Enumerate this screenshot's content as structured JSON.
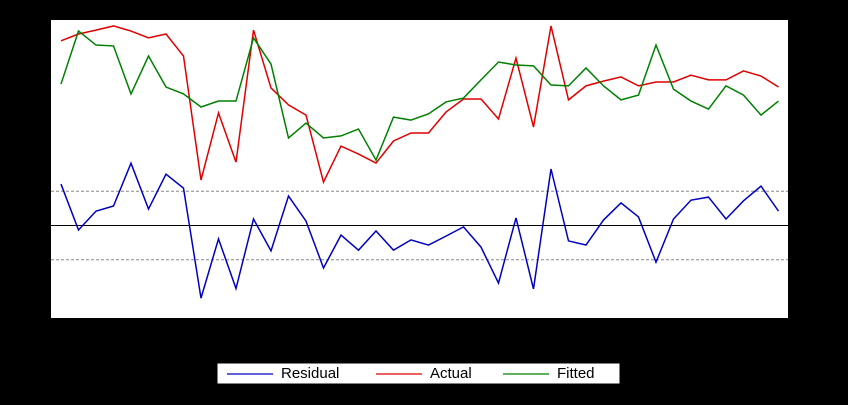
{
  "chart_data": {
    "type": "line",
    "categories": [
      null,
      null,
      null,
      null,
      null,
      null,
      null,
      null,
      null,
      null,
      null,
      null,
      null,
      null,
      null,
      null,
      null,
      null,
      null,
      null,
      null,
      null,
      null,
      null,
      null,
      null,
      null,
      null,
      null,
      null,
      null,
      null,
      null,
      null,
      null,
      null,
      null,
      null,
      null,
      null,
      null,
      null
    ],
    "ylim": [
      0,
      100
    ],
    "y2lim": [
      -2.7,
      6
    ],
    "y2ticks": [
      -1,
      0,
      1
    ],
    "series": [
      {
        "name": "Residual",
        "color": "#0000c0",
        "axis": "y2",
        "values": [
          1.21,
          -0.13,
          0.42,
          0.57,
          1.82,
          0.48,
          1.5,
          1.09,
          -2.12,
          -0.39,
          -1.84,
          0.19,
          -0.74,
          0.86,
          0.13,
          -1.24,
          -0.28,
          -0.72,
          -0.16,
          -0.72,
          -0.42,
          -0.57,
          -0.31,
          -0.04,
          -0.63,
          -1.68,
          0.22,
          -1.85,
          1.65,
          -0.45,
          -0.57,
          0.16,
          0.66,
          0.25,
          -1.07,
          0.19,
          0.74,
          0.83,
          0.19,
          0.72,
          1.15,
          0.42
        ]
      },
      {
        "name": "Actual",
        "color": "#e00000",
        "values": [
          93.0,
          95.3,
          96.6,
          98.0,
          96.3,
          94.0,
          95.3,
          87.9,
          46.3,
          68.8,
          52.3,
          96.6,
          77.2,
          71.5,
          68.1,
          45.6,
          57.7,
          55.0,
          52.0,
          59.4,
          62.1,
          62.1,
          69.1,
          73.5,
          73.5,
          66.8,
          87.2,
          64.1,
          98.0,
          73.2,
          77.9,
          79.5,
          80.9,
          77.9,
          79.2,
          79.2,
          81.5,
          79.9,
          79.9,
          82.9,
          81.2,
          77.5
        ]
      },
      {
        "name": "Fitted",
        "color": "#008000",
        "values": [
          78.5,
          96.3,
          91.6,
          91.3,
          75.2,
          87.9,
          77.5,
          75.2,
          70.8,
          72.8,
          72.8,
          94.0,
          85.2,
          60.4,
          65.4,
          60.4,
          61.1,
          63.4,
          53.0,
          67.4,
          66.4,
          68.5,
          72.5,
          73.8,
          79.9,
          85.9,
          84.9,
          84.6,
          78.2,
          77.9,
          83.9,
          77.9,
          73.2,
          74.8,
          91.6,
          76.8,
          72.8,
          70.1,
          77.9,
          74.8,
          68.1,
          72.8
        ]
      }
    ]
  }
}
